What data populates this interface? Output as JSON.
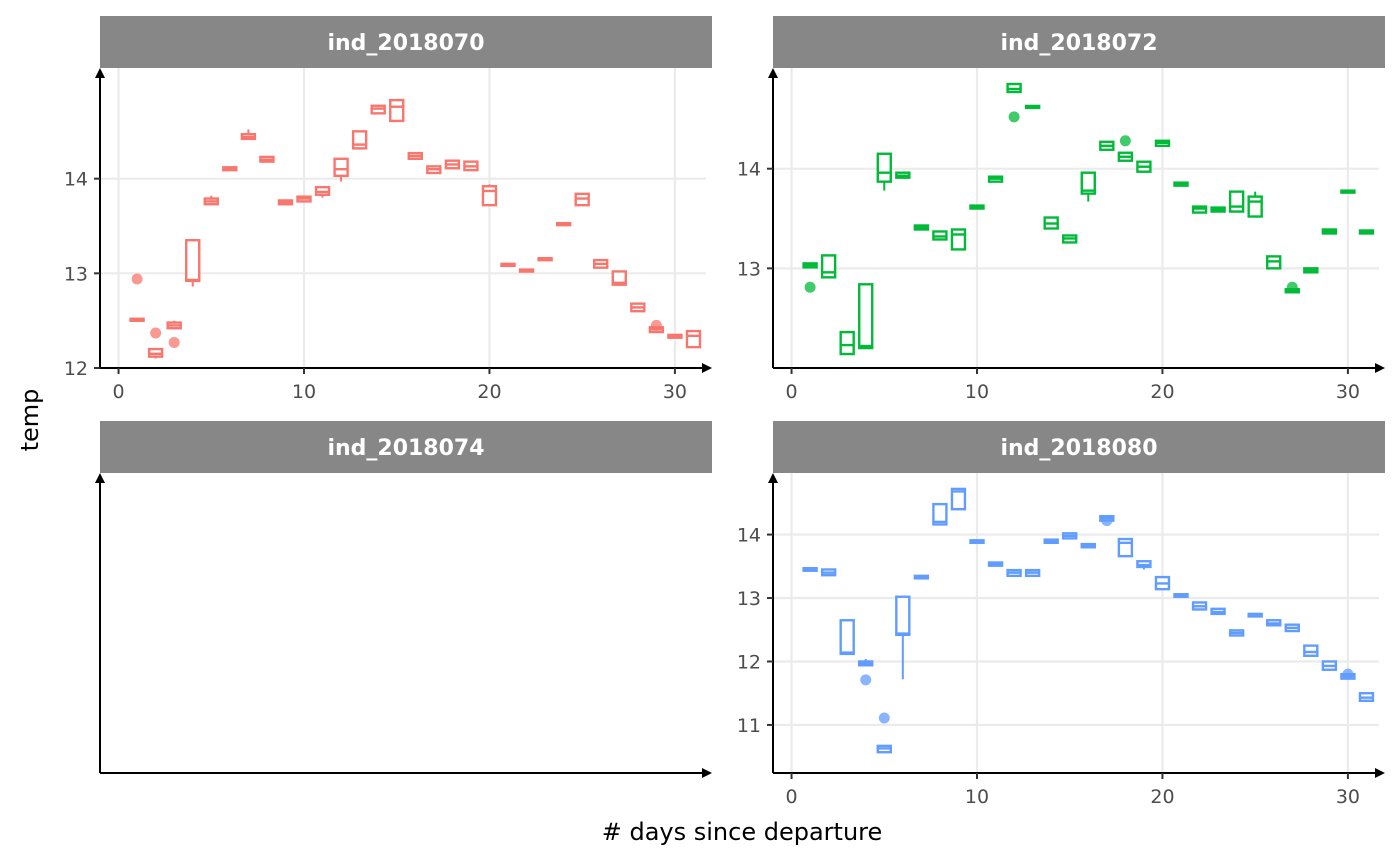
{
  "chart_data": {
    "type": "box",
    "xlabel": "# days since departure",
    "ylabel": "temp",
    "legend": "none",
    "grid": true,
    "panels": [
      {
        "name": "ind_2018070",
        "color": "#F8766D",
        "xlim": [
          -1,
          32
        ],
        "ylim": [
          12,
          15
        ],
        "x_ticks": [
          0,
          10,
          20,
          30
        ],
        "y_ticks": [
          12,
          13,
          14
        ],
        "x_tick_labels": [
          "0",
          "10",
          "20",
          "30"
        ],
        "y_tick_labels": [
          "12",
          "13",
          "14"
        ],
        "boxes": [
          {
            "x": 1,
            "lo": 12.5,
            "q1": 12.5,
            "med": 12.51,
            "q3": 12.52,
            "hi": 12.52
          },
          {
            "x": 2,
            "lo": 12.1,
            "q1": 12.12,
            "med": 12.15,
            "q3": 12.2,
            "hi": 12.2
          },
          {
            "x": 3,
            "lo": 12.42,
            "q1": 12.42,
            "med": 12.45,
            "q3": 12.48,
            "hi": 12.5
          },
          {
            "x": 4,
            "lo": 12.86,
            "q1": 12.92,
            "med": 12.93,
            "q3": 13.35,
            "hi": 13.35
          },
          {
            "x": 5,
            "lo": 13.72,
            "q1": 13.73,
            "med": 13.76,
            "q3": 13.79,
            "hi": 13.82
          },
          {
            "x": 6,
            "lo": 14.08,
            "q1": 14.09,
            "med": 14.1,
            "q3": 14.12,
            "hi": 14.12
          },
          {
            "x": 7,
            "lo": 14.41,
            "q1": 14.42,
            "med": 14.44,
            "q3": 14.47,
            "hi": 14.52
          },
          {
            "x": 8,
            "lo": 14.18,
            "q1": 14.18,
            "med": 14.2,
            "q3": 14.23,
            "hi": 14.23
          },
          {
            "x": 9,
            "lo": 13.73,
            "q1": 13.73,
            "med": 13.75,
            "q3": 13.77,
            "hi": 13.77
          },
          {
            "x": 10,
            "lo": 13.75,
            "q1": 13.76,
            "med": 13.79,
            "q3": 13.81,
            "hi": 13.82
          },
          {
            "x": 11,
            "lo": 13.8,
            "q1": 13.83,
            "med": 13.86,
            "q3": 13.91,
            "hi": 13.91
          },
          {
            "x": 12,
            "lo": 13.97,
            "q1": 14.03,
            "med": 14.1,
            "q3": 14.21,
            "hi": 14.21
          },
          {
            "x": 13,
            "lo": 14.32,
            "q1": 14.32,
            "med": 14.36,
            "q3": 14.5,
            "hi": 14.5
          },
          {
            "x": 14,
            "lo": 14.69,
            "q1": 14.69,
            "med": 14.74,
            "q3": 14.77,
            "hi": 14.77
          },
          {
            "x": 15,
            "lo": 14.61,
            "q1": 14.61,
            "med": 14.76,
            "q3": 14.83,
            "hi": 14.83
          },
          {
            "x": 16,
            "lo": 14.21,
            "q1": 14.21,
            "med": 14.24,
            "q3": 14.27,
            "hi": 14.27
          },
          {
            "x": 17,
            "lo": 14.06,
            "q1": 14.06,
            "med": 14.1,
            "q3": 14.13,
            "hi": 14.13
          },
          {
            "x": 18,
            "lo": 14.11,
            "q1": 14.11,
            "med": 14.15,
            "q3": 14.19,
            "hi": 14.19
          },
          {
            "x": 19,
            "lo": 14.09,
            "q1": 14.09,
            "med": 14.13,
            "q3": 14.18,
            "hi": 14.18
          },
          {
            "x": 20,
            "lo": 13.72,
            "q1": 13.72,
            "med": 13.87,
            "q3": 13.92,
            "hi": 13.94
          },
          {
            "x": 21,
            "lo": 13.08,
            "q1": 13.08,
            "med": 13.09,
            "q3": 13.1,
            "hi": 13.1
          },
          {
            "x": 22,
            "lo": 13.02,
            "q1": 13.02,
            "med": 13.03,
            "q3": 13.04,
            "hi": 13.04
          },
          {
            "x": 23,
            "lo": 13.14,
            "q1": 13.14,
            "med": 13.15,
            "q3": 13.16,
            "hi": 13.16
          },
          {
            "x": 24,
            "lo": 13.51,
            "q1": 13.51,
            "med": 13.52,
            "q3": 13.53,
            "hi": 13.53
          },
          {
            "x": 25,
            "lo": 13.72,
            "q1": 13.72,
            "med": 13.79,
            "q3": 13.84,
            "hi": 13.84
          },
          {
            "x": 26,
            "lo": 13.06,
            "q1": 13.06,
            "med": 13.1,
            "q3": 13.14,
            "hi": 13.14
          },
          {
            "x": 27,
            "lo": 12.88,
            "q1": 12.88,
            "med": 12.9,
            "q3": 13.02,
            "hi": 13.02
          },
          {
            "x": 28,
            "lo": 12.6,
            "q1": 12.6,
            "med": 12.64,
            "q3": 12.68,
            "hi": 12.68
          },
          {
            "x": 29,
            "lo": 12.38,
            "q1": 12.38,
            "med": 12.41,
            "q3": 12.43,
            "hi": 12.43
          },
          {
            "x": 30,
            "lo": 12.32,
            "q1": 12.32,
            "med": 12.33,
            "q3": 12.35,
            "hi": 12.35
          },
          {
            "x": 31,
            "lo": 12.22,
            "q1": 12.22,
            "med": 12.34,
            "q3": 12.39,
            "hi": 12.39
          }
        ],
        "outliers": [
          {
            "x": 1,
            "y": 12.94
          },
          {
            "x": 2,
            "y": 12.37
          },
          {
            "x": 3,
            "y": 12.27
          },
          {
            "x": 29,
            "y": 12.45
          }
        ]
      },
      {
        "name": "ind_2018072",
        "color": "#00BA38",
        "xlim": [
          -1,
          32
        ],
        "ylim": [
          12.0,
          14.85
        ],
        "x_ticks": [
          0,
          10,
          20,
          30
        ],
        "y_ticks": [
          13,
          14
        ],
        "x_tick_labels": [
          "0",
          "10",
          "20",
          "30"
        ],
        "y_tick_labels": [
          "13",
          "14"
        ],
        "boxes": [
          {
            "x": 1,
            "lo": 13.01,
            "q1": 13.01,
            "med": 13.03,
            "q3": 13.05,
            "hi": 13.05
          },
          {
            "x": 2,
            "lo": 12.91,
            "q1": 12.91,
            "med": 12.96,
            "q3": 13.13,
            "hi": 13.13
          },
          {
            "x": 3,
            "lo": 12.14,
            "q1": 12.14,
            "med": 12.23,
            "q3": 12.36,
            "hi": 12.36
          },
          {
            "x": 4,
            "lo": 12.2,
            "q1": 12.2,
            "med": 12.22,
            "q3": 12.84,
            "hi": 12.84
          },
          {
            "x": 5,
            "lo": 13.78,
            "q1": 13.87,
            "med": 13.96,
            "q3": 14.15,
            "hi": 14.15
          },
          {
            "x": 6,
            "lo": 13.91,
            "q1": 13.91,
            "med": 13.93,
            "q3": 13.96,
            "hi": 13.96
          },
          {
            "x": 7,
            "lo": 13.39,
            "q1": 13.39,
            "med": 13.41,
            "q3": 13.43,
            "hi": 13.43
          },
          {
            "x": 8,
            "lo": 13.29,
            "q1": 13.29,
            "med": 13.32,
            "q3": 13.37,
            "hi": 13.37
          },
          {
            "x": 9,
            "lo": 13.19,
            "q1": 13.19,
            "med": 13.34,
            "q3": 13.39,
            "hi": 13.39
          },
          {
            "x": 10,
            "lo": 13.6,
            "q1": 13.6,
            "med": 13.62,
            "q3": 13.63,
            "hi": 13.63
          },
          {
            "x": 11,
            "lo": 13.87,
            "q1": 13.87,
            "med": 13.9,
            "q3": 13.92,
            "hi": 13.92
          },
          {
            "x": 12,
            "lo": 14.77,
            "q1": 14.77,
            "med": 14.8,
            "q3": 14.85,
            "hi": 14.85
          },
          {
            "x": 13,
            "lo": 14.61,
            "q1": 14.61,
            "med": 14.62,
            "q3": 14.63,
            "hi": 14.63
          },
          {
            "x": 14,
            "lo": 13.4,
            "q1": 13.4,
            "med": 13.45,
            "q3": 13.51,
            "hi": 13.51
          },
          {
            "x": 15,
            "lo": 13.26,
            "q1": 13.26,
            "med": 13.3,
            "q3": 13.33,
            "hi": 13.33
          },
          {
            "x": 16,
            "lo": 13.67,
            "q1": 13.75,
            "med": 13.78,
            "q3": 13.96,
            "hi": 13.96
          },
          {
            "x": 17,
            "lo": 14.19,
            "q1": 14.19,
            "med": 14.23,
            "q3": 14.27,
            "hi": 14.27
          },
          {
            "x": 18,
            "lo": 14.08,
            "q1": 14.08,
            "med": 14.12,
            "q3": 14.16,
            "hi": 14.16
          },
          {
            "x": 19,
            "lo": 13.97,
            "q1": 13.97,
            "med": 14.02,
            "q3": 14.07,
            "hi": 14.07
          },
          {
            "x": 20,
            "lo": 14.23,
            "q1": 14.23,
            "med": 14.26,
            "q3": 14.28,
            "hi": 14.28
          },
          {
            "x": 21,
            "lo": 13.83,
            "q1": 13.83,
            "med": 13.85,
            "q3": 13.86,
            "hi": 13.86
          },
          {
            "x": 22,
            "lo": 13.56,
            "q1": 13.56,
            "med": 13.6,
            "q3": 13.62,
            "hi": 13.62
          },
          {
            "x": 23,
            "lo": 13.57,
            "q1": 13.57,
            "med": 13.59,
            "q3": 13.61,
            "hi": 13.61
          },
          {
            "x": 24,
            "lo": 13.57,
            "q1": 13.57,
            "med": 13.62,
            "q3": 13.77,
            "hi": 13.77
          },
          {
            "x": 25,
            "lo": 13.52,
            "q1": 13.52,
            "med": 13.67,
            "q3": 13.72,
            "hi": 13.77
          },
          {
            "x": 26,
            "lo": 13.0,
            "q1": 13.0,
            "med": 13.07,
            "q3": 13.12,
            "hi": 13.12
          },
          {
            "x": 27,
            "lo": 12.76,
            "q1": 12.76,
            "med": 12.78,
            "q3": 12.79,
            "hi": 12.79
          },
          {
            "x": 28,
            "lo": 12.96,
            "q1": 12.96,
            "med": 12.98,
            "q3": 13.0,
            "hi": 13.0
          },
          {
            "x": 29,
            "lo": 13.35,
            "q1": 13.35,
            "med": 13.37,
            "q3": 13.39,
            "hi": 13.39
          },
          {
            "x": 30,
            "lo": 13.76,
            "q1": 13.76,
            "med": 13.77,
            "q3": 13.78,
            "hi": 13.78
          },
          {
            "x": 31,
            "lo": 13.35,
            "q1": 13.35,
            "med": 13.37,
            "q3": 13.38,
            "hi": 13.38
          }
        ],
        "outliers": [
          {
            "x": 1,
            "y": 12.81
          },
          {
            "x": 12,
            "y": 14.52
          },
          {
            "x": 18,
            "y": 14.28
          },
          {
            "x": 27,
            "y": 12.81
          }
        ]
      },
      {
        "name": "ind_2018074",
        "color": "#619CFF",
        "xlim": [
          -1,
          32
        ],
        "ylim": [
          0,
          1
        ],
        "x_ticks": [],
        "y_ticks": [],
        "x_tick_labels": [],
        "y_tick_labels": [],
        "boxes": [],
        "outliers": []
      },
      {
        "name": "ind_2018080",
        "color": "#619CFF",
        "xlim": [
          -1,
          32
        ],
        "ylim": [
          10.4,
          14.75
        ],
        "x_ticks": [
          0,
          10,
          20,
          30
        ],
        "y_ticks": [
          11,
          12,
          13,
          14
        ],
        "x_tick_labels": [
          "0",
          "10",
          "20",
          "30"
        ],
        "y_tick_labels": [
          "11",
          "12",
          "13",
          "14"
        ],
        "boxes": [
          {
            "x": 1,
            "lo": 13.43,
            "q1": 13.43,
            "med": 13.45,
            "q3": 13.47,
            "hi": 13.47
          },
          {
            "x": 2,
            "lo": 13.36,
            "q1": 13.36,
            "med": 13.4,
            "q3": 13.45,
            "hi": 13.45
          },
          {
            "x": 3,
            "lo": 12.12,
            "q1": 12.12,
            "med": 12.14,
            "q3": 12.65,
            "hi": 12.65
          },
          {
            "x": 4,
            "lo": 11.94,
            "q1": 11.94,
            "med": 11.97,
            "q3": 12.0,
            "hi": 12.04
          },
          {
            "x": 5,
            "lo": 10.57,
            "q1": 10.57,
            "med": 10.63,
            "q3": 10.67,
            "hi": 10.67
          },
          {
            "x": 6,
            "lo": 11.72,
            "q1": 12.42,
            "med": 12.44,
            "q3": 13.02,
            "hi": 13.02
          },
          {
            "x": 7,
            "lo": 13.31,
            "q1": 13.31,
            "med": 13.33,
            "q3": 13.35,
            "hi": 13.35
          },
          {
            "x": 8,
            "lo": 14.16,
            "q1": 14.16,
            "med": 14.2,
            "q3": 14.48,
            "hi": 14.48
          },
          {
            "x": 9,
            "lo": 14.4,
            "q1": 14.4,
            "med": 14.68,
            "q3": 14.72,
            "hi": 14.72
          },
          {
            "x": 10,
            "lo": 13.87,
            "q1": 13.87,
            "med": 13.89,
            "q3": 13.91,
            "hi": 13.91
          },
          {
            "x": 11,
            "lo": 13.51,
            "q1": 13.51,
            "med": 13.53,
            "q3": 13.56,
            "hi": 13.56
          },
          {
            "x": 12,
            "lo": 13.35,
            "q1": 13.35,
            "med": 13.4,
            "q3": 13.44,
            "hi": 13.44
          },
          {
            "x": 13,
            "lo": 13.35,
            "q1": 13.35,
            "med": 13.4,
            "q3": 13.44,
            "hi": 13.44
          },
          {
            "x": 14,
            "lo": 13.87,
            "q1": 13.87,
            "med": 13.89,
            "q3": 13.92,
            "hi": 13.92
          },
          {
            "x": 15,
            "lo": 13.94,
            "q1": 13.94,
            "med": 13.98,
            "q3": 14.02,
            "hi": 14.02
          },
          {
            "x": 16,
            "lo": 13.8,
            "q1": 13.8,
            "med": 13.83,
            "q3": 13.85,
            "hi": 13.85
          },
          {
            "x": 17,
            "lo": 14.22,
            "q1": 14.22,
            "med": 14.26,
            "q3": 14.29,
            "hi": 14.29
          },
          {
            "x": 18,
            "lo": 13.66,
            "q1": 13.66,
            "med": 13.87,
            "q3": 13.93,
            "hi": 13.93
          },
          {
            "x": 19,
            "lo": 13.45,
            "q1": 13.49,
            "med": 13.52,
            "q3": 13.58,
            "hi": 13.58
          },
          {
            "x": 20,
            "lo": 13.14,
            "q1": 13.14,
            "med": 13.23,
            "q3": 13.33,
            "hi": 13.33
          },
          {
            "x": 21,
            "lo": 13.02,
            "q1": 13.02,
            "med": 13.04,
            "q3": 13.06,
            "hi": 13.06
          },
          {
            "x": 22,
            "lo": 12.82,
            "q1": 12.82,
            "med": 12.87,
            "q3": 12.93,
            "hi": 12.93
          },
          {
            "x": 23,
            "lo": 12.75,
            "q1": 12.75,
            "med": 12.78,
            "q3": 12.83,
            "hi": 12.83
          },
          {
            "x": 24,
            "lo": 12.41,
            "q1": 12.41,
            "med": 12.45,
            "q3": 12.49,
            "hi": 12.49
          },
          {
            "x": 25,
            "lo": 12.71,
            "q1": 12.71,
            "med": 12.73,
            "q3": 12.75,
            "hi": 12.75
          },
          {
            "x": 26,
            "lo": 12.57,
            "q1": 12.57,
            "med": 12.6,
            "q3": 12.65,
            "hi": 12.65
          },
          {
            "x": 27,
            "lo": 12.48,
            "q1": 12.48,
            "med": 12.53,
            "q3": 12.58,
            "hi": 12.58
          },
          {
            "x": 28,
            "lo": 12.09,
            "q1": 12.09,
            "med": 12.15,
            "q3": 12.25,
            "hi": 12.25
          },
          {
            "x": 29,
            "lo": 11.87,
            "q1": 11.87,
            "med": 11.93,
            "q3": 12.0,
            "hi": 12.0
          },
          {
            "x": 30,
            "lo": 11.73,
            "q1": 11.73,
            "med": 11.77,
            "q3": 11.8,
            "hi": 11.8
          },
          {
            "x": 31,
            "lo": 11.38,
            "q1": 11.38,
            "med": 11.43,
            "q3": 11.5,
            "hi": 11.5
          }
        ],
        "outliers": [
          {
            "x": 4,
            "y": 11.71
          },
          {
            "x": 5,
            "y": 11.11
          },
          {
            "x": 17,
            "y": 14.22
          },
          {
            "x": 30,
            "y": 11.8
          }
        ]
      }
    ]
  }
}
